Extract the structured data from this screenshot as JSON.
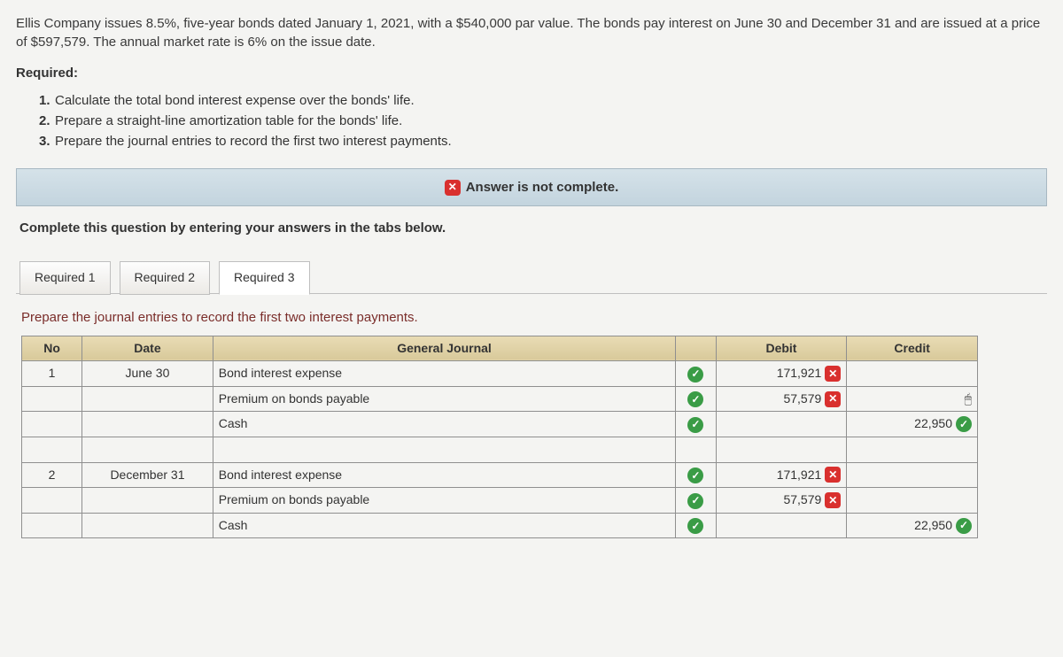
{
  "problem_text": "Ellis Company issues 8.5%, five-year bonds dated January 1, 2021, with a $540,000 par value. The bonds pay interest on June 30 and December 31 and are issued at a price of $597,579. The annual market rate is 6% on the issue date.",
  "required_heading": "Required:",
  "requirements": [
    "Calculate the total bond interest expense over the bonds' life.",
    "Prepare a straight-line amortization table for the bonds' life.",
    "Prepare the journal entries to record the first two interest payments."
  ],
  "status_banner": "Answer is not complete.",
  "instruction": "Complete this question by entering your answers in the tabs below.",
  "tabs": [
    "Required 1",
    "Required 2",
    "Required 3"
  ],
  "active_tab_index": 2,
  "panel_instruction": "Prepare the journal entries to record the first two interest payments.",
  "headers": {
    "no": "No",
    "date": "Date",
    "gj": "General Journal",
    "debit": "Debit",
    "credit": "Credit"
  },
  "rows": [
    {
      "no": "1",
      "date": "June 30",
      "account": "Bond interest expense",
      "indent": 1,
      "mark": "ok",
      "debit": "171,921",
      "debit_mark": "bad",
      "credit": "",
      "credit_mark": ""
    },
    {
      "no": "",
      "date": "",
      "account": "Premium on bonds payable",
      "indent": 1,
      "mark": "ok",
      "debit": "57,579",
      "debit_mark": "bad",
      "credit": "",
      "credit_mark": "cursor"
    },
    {
      "no": "",
      "date": "",
      "account": "Cash",
      "indent": 2,
      "mark": "ok",
      "debit": "",
      "debit_mark": "",
      "credit": "22,950",
      "credit_mark": "ok"
    },
    {
      "no": "",
      "date": "",
      "account": "",
      "indent": 0,
      "mark": "",
      "debit": "",
      "debit_mark": "",
      "credit": "",
      "credit_mark": ""
    },
    {
      "no": "2",
      "date": "December 31",
      "account": "Bond interest expense",
      "indent": 1,
      "mark": "ok",
      "debit": "171,921",
      "debit_mark": "bad",
      "credit": "",
      "credit_mark": ""
    },
    {
      "no": "",
      "date": "",
      "account": "Premium on bonds payable",
      "indent": 1,
      "mark": "ok",
      "debit": "57,579",
      "debit_mark": "bad",
      "credit": "",
      "credit_mark": ""
    },
    {
      "no": "",
      "date": "",
      "account": "Cash",
      "indent": 2,
      "mark": "ok",
      "debit": "",
      "debit_mark": "",
      "credit": "22,950",
      "credit_mark": "ok"
    }
  ],
  "icons": {
    "x": "✕",
    "check": "✓",
    "cursor": "↖"
  }
}
